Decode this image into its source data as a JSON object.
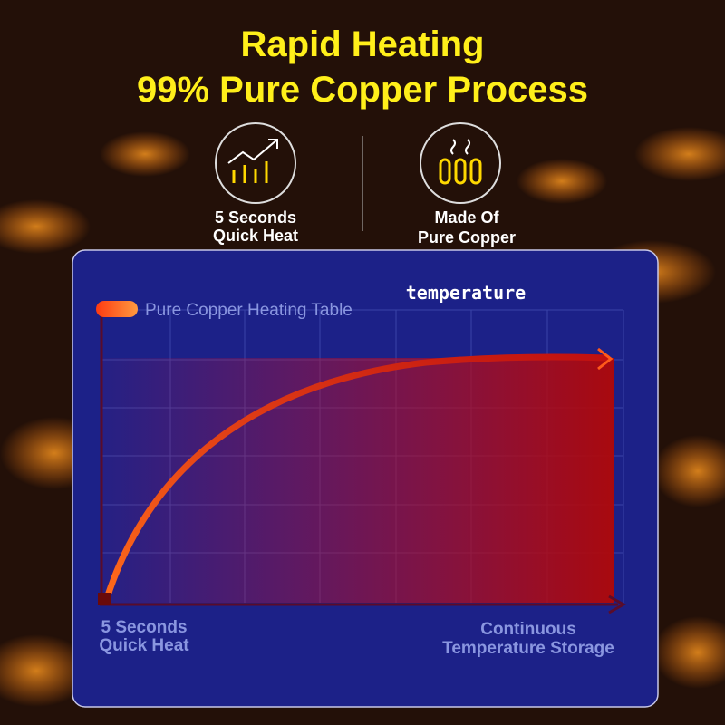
{
  "header": {
    "title_lines": [
      "Rapid Heating",
      "99% Pure Copper Process"
    ]
  },
  "features": [
    {
      "label_lines": [
        "5 Seconds",
        "Quick Heat"
      ]
    },
    {
      "label_lines": [
        "Made Of",
        "Pure Copper"
      ]
    }
  ],
  "panel": {
    "legend": "Pure Copper Heating Table",
    "axis_label": "temperature",
    "start_label_lines": [
      "5 Seconds",
      "Quick Heat"
    ],
    "end_label_lines": [
      "Continuous",
      "Temperature Storage"
    ]
  }
}
